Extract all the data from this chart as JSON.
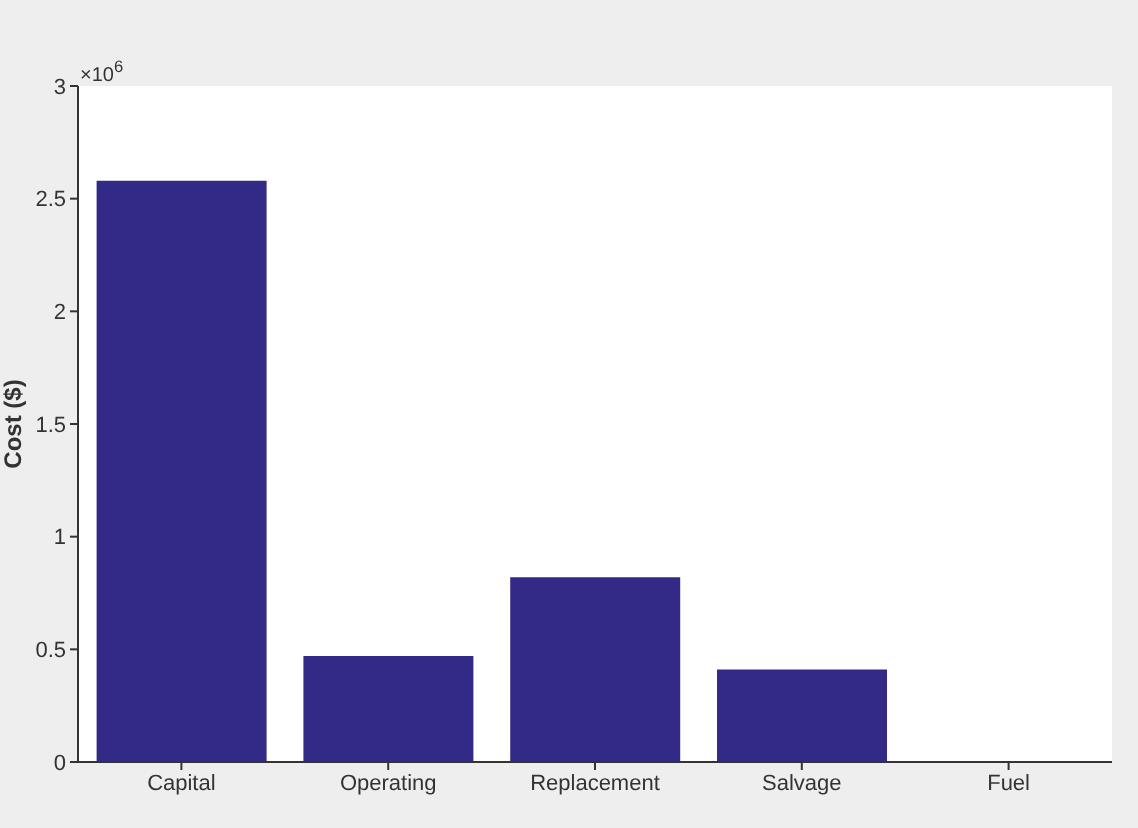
{
  "chart_data": {
    "type": "bar",
    "ylabel": "Cost ($)",
    "categories": [
      "Capital",
      "Operating",
      "Replacement",
      "Salvage",
      "Fuel"
    ],
    "values": [
      2.58,
      0.47,
      0.82,
      0.41,
      0
    ],
    "color": "#332a87",
    "ylim": [
      0,
      3
    ],
    "yticks": [
      0,
      0.5,
      1,
      1.5,
      2,
      2.5,
      3
    ],
    "grid": false,
    "annotations": [
      "×10$^{6}$"
    ]
  }
}
